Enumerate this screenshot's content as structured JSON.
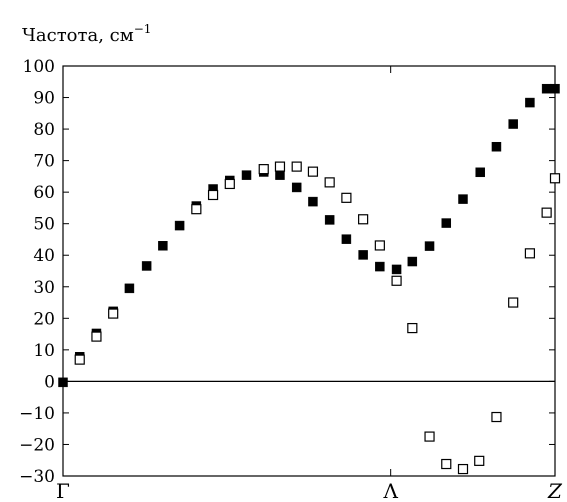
{
  "chart_data": {
    "type": "scatter",
    "title": "",
    "ylabel": "Частота, см",
    "ylabel_exponent": "−1",
    "xlabel": "",
    "xlim": [
      0,
      1
    ],
    "ylim": [
      -30,
      100
    ],
    "yticks": [
      {
        "value": 100,
        "label": "100"
      },
      {
        "value": 90,
        "label": "90"
      },
      {
        "value": 80,
        "label": "80"
      },
      {
        "value": 70,
        "label": "70"
      },
      {
        "value": 60,
        "label": "60"
      },
      {
        "value": 50,
        "label": "50"
      },
      {
        "value": 40,
        "label": "40"
      },
      {
        "value": 30,
        "label": "30"
      },
      {
        "value": 20,
        "label": "20"
      },
      {
        "value": 10,
        "label": "10"
      },
      {
        "value": 0,
        "label": "0"
      },
      {
        "value": -10,
        "label": "−10"
      },
      {
        "value": -20,
        "label": "−20"
      },
      {
        "value": -30,
        "label": "−30"
      }
    ],
    "xticks": [
      {
        "value": 0,
        "label": "Γ",
        "italic": false
      },
      {
        "value": 0.666,
        "label": "Λ",
        "italic": false
      },
      {
        "value": 1,
        "label": "Z",
        "italic": true
      }
    ],
    "zero_line": true,
    "grid": false,
    "legend": "none",
    "series": [
      {
        "marker": "filled-square",
        "color": "#000000",
        "points": [
          [
            0,
            -0.3
          ],
          [
            0.034,
            7.8
          ],
          [
            0.068,
            15.2
          ],
          [
            0.102,
            22.2
          ],
          [
            0.135,
            29.5
          ],
          [
            0.17,
            36.6
          ],
          [
            0.203,
            43.0
          ],
          [
            0.237,
            49.4
          ],
          [
            0.271,
            55.6
          ],
          [
            0.305,
            61.0
          ],
          [
            0.339,
            63.7
          ],
          [
            0.373,
            65.4
          ],
          [
            0.408,
            66.4
          ],
          [
            0.441,
            65.4
          ],
          [
            0.475,
            61.5
          ],
          [
            0.508,
            57.0
          ],
          [
            0.542,
            51.2
          ],
          [
            0.576,
            45.1
          ],
          [
            0.61,
            40.1
          ],
          [
            0.644,
            36.4
          ],
          [
            0.678,
            35.5
          ],
          [
            0.71,
            38.0
          ],
          [
            0.745,
            42.9
          ],
          [
            0.779,
            50.2
          ],
          [
            0.813,
            57.8
          ],
          [
            0.848,
            66.3
          ],
          [
            0.881,
            74.4
          ],
          [
            0.915,
            81.6
          ],
          [
            0.949,
            88.4
          ],
          [
            0.983,
            92.8
          ],
          [
            1.0,
            92.8
          ]
        ]
      },
      {
        "marker": "open-square",
        "color": "#000000",
        "points": [
          [
            0.034,
            6.9
          ],
          [
            0.068,
            14.2
          ],
          [
            0.102,
            21.5
          ],
          [
            0.271,
            54.6
          ],
          [
            0.305,
            59.1
          ],
          [
            0.339,
            62.6
          ],
          [
            0.408,
            67.3
          ],
          [
            0.441,
            68.1
          ],
          [
            0.475,
            68.1
          ],
          [
            0.508,
            66.5
          ],
          [
            0.542,
            63.1
          ],
          [
            0.576,
            58.2
          ],
          [
            0.61,
            51.4
          ],
          [
            0.644,
            43.1
          ],
          [
            0.678,
            31.9
          ],
          [
            0.71,
            16.9
          ],
          [
            0.745,
            -17.5
          ],
          [
            0.779,
            -26.2
          ],
          [
            0.813,
            -27.8
          ],
          [
            0.846,
            -25.2
          ],
          [
            0.881,
            -11.3
          ],
          [
            0.915,
            25.0
          ],
          [
            0.949,
            40.6
          ],
          [
            0.983,
            53.5
          ],
          [
            1.0,
            64.4
          ]
        ]
      }
    ]
  }
}
